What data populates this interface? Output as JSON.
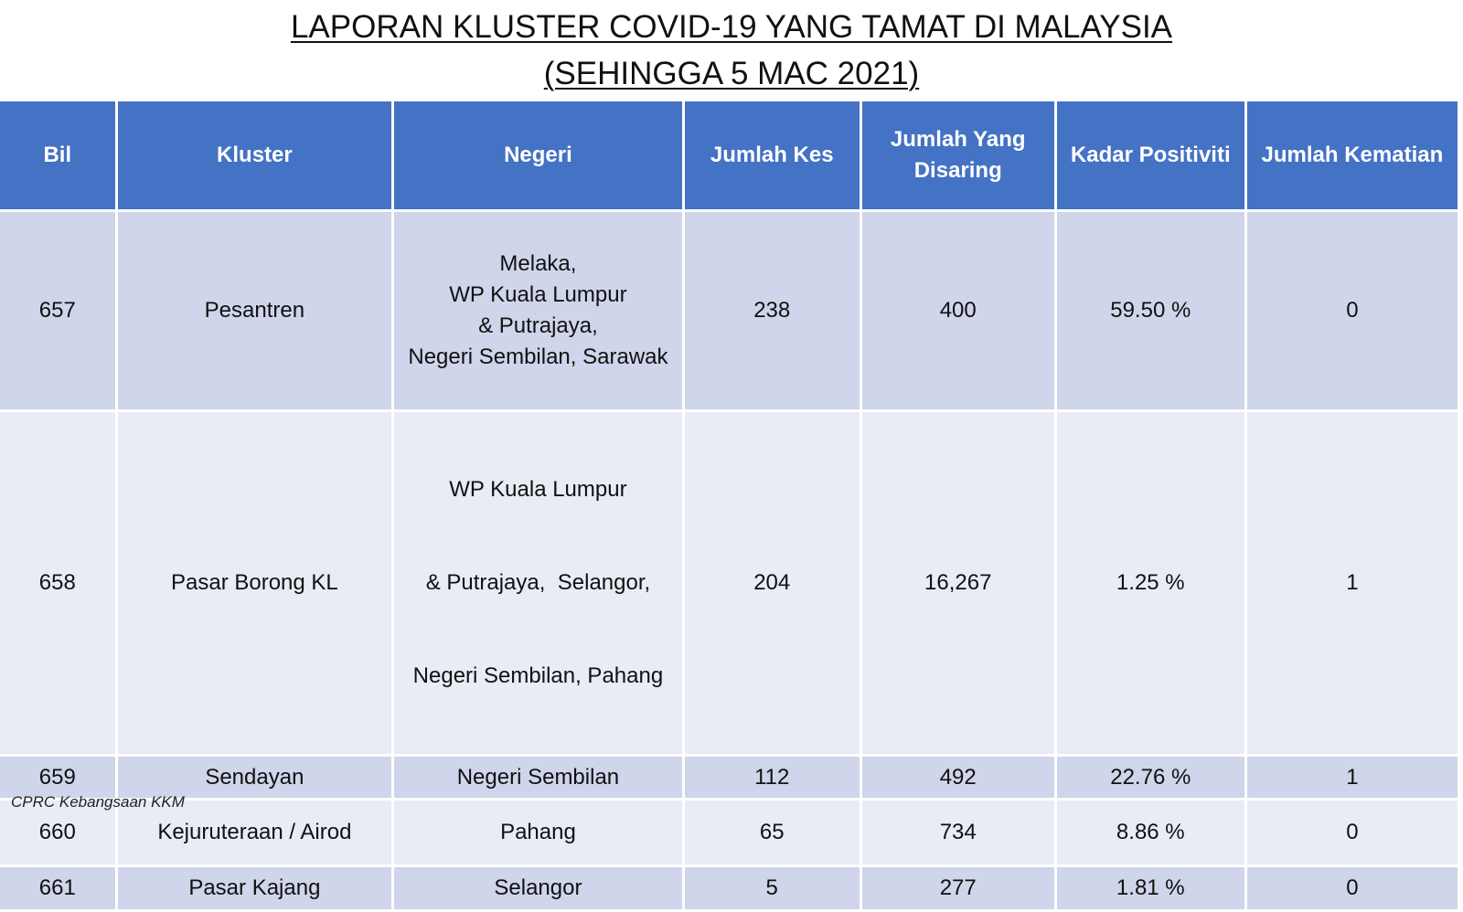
{
  "title": {
    "line1": "LAPORAN KLUSTER COVID-19 YANG TAMAT DI MALAYSIA",
    "line2": "(SEHINGGA 5 MAC 2021)"
  },
  "table": {
    "headers": [
      "Bil",
      "Kluster",
      "Negeri",
      "Jumlah Kes",
      "Jumlah Yang Disaring",
      "Kadar Positiviti",
      "Jumlah Kematian"
    ],
    "rows": [
      {
        "bil": "657",
        "kluster": "Pesantren",
        "negeri": [
          "Melaka,",
          "WP Kuala Lumpur",
          "& Putrajaya,",
          "Negeri Sembilan, Sarawak"
        ],
        "jumlah_kes": "238",
        "disaring": "400",
        "positiviti": "59.50 %",
        "kematian": "0"
      },
      {
        "bil": "658",
        "kluster": "Pasar Borong KL",
        "negeri": [
          "WP Kuala Lumpur",
          "& Putrajaya,  Selangor,",
          "Negeri Sembilan, Pahang"
        ],
        "jumlah_kes": "204",
        "disaring": "16,267",
        "positiviti": "1.25 %",
        "kematian": "1"
      },
      {
        "bil": "659",
        "kluster": "Sendayan",
        "negeri": [
          "Negeri Sembilan"
        ],
        "jumlah_kes": "112",
        "disaring": "492",
        "positiviti": "22.76 %",
        "kematian": "1"
      },
      {
        "bil": "660",
        "kluster": "Kejuruteraan / Airod",
        "negeri": [
          "Pahang"
        ],
        "jumlah_kes": "65",
        "disaring": "734",
        "positiviti": "8.86 %",
        "kematian": "0"
      },
      {
        "bil": "661",
        "kluster": "Pasar Kajang",
        "negeri": [
          "Selangor"
        ],
        "jumlah_kes": "5",
        "disaring": "277",
        "positiviti": "1.81 %",
        "kematian": "0"
      }
    ]
  },
  "footer": "CPRC Kebangsaan KKM",
  "colors": {
    "header_bg": "#4472c4",
    "row_dark": "#cfd5ea",
    "row_light": "#e9ebf5"
  }
}
